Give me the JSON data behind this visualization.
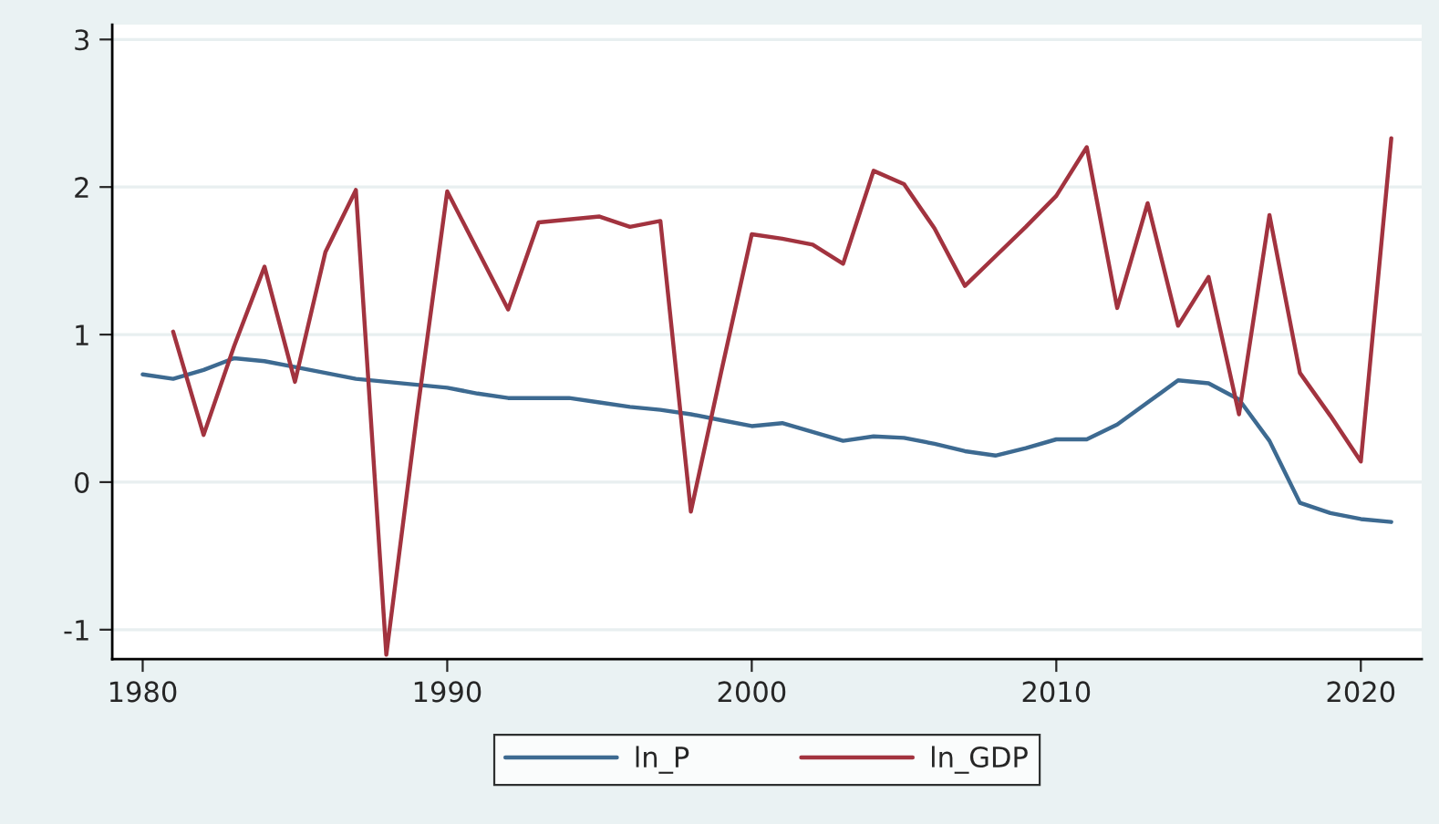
{
  "chart_data": {
    "type": "line",
    "x": [
      1980,
      1981,
      1982,
      1983,
      1984,
      1985,
      1986,
      1987,
      1988,
      1989,
      1990,
      1991,
      1992,
      1993,
      1994,
      1995,
      1996,
      1997,
      1998,
      1999,
      2000,
      2001,
      2002,
      2003,
      2004,
      2005,
      2006,
      2007,
      2008,
      2009,
      2010,
      2011,
      2012,
      2013,
      2014,
      2015,
      2016,
      2017,
      2018,
      2019,
      2020,
      2021
    ],
    "series": [
      {
        "name": "ln_P",
        "color": "#3d6a91",
        "values": [
          0.73,
          0.7,
          0.76,
          0.84,
          0.82,
          0.78,
          0.74,
          0.7,
          0.68,
          0.66,
          0.64,
          0.6,
          0.57,
          0.57,
          0.57,
          0.54,
          0.51,
          0.49,
          0.46,
          0.42,
          0.38,
          0.4,
          0.34,
          0.28,
          0.31,
          0.3,
          0.26,
          0.21,
          0.18,
          0.23,
          0.29,
          0.29,
          0.39,
          0.54,
          0.69,
          0.67,
          0.56,
          0.28,
          -0.14,
          -0.21,
          -0.25,
          -0.27
        ]
      },
      {
        "name": "ln_GDP",
        "color": "#a2333f",
        "values": [
          null,
          1.02,
          0.32,
          0.92,
          1.46,
          0.68,
          1.56,
          1.98,
          -1.17,
          0.45,
          1.97,
          1.57,
          1.17,
          1.76,
          1.78,
          1.8,
          1.73,
          1.77,
          -0.2,
          0.75,
          1.68,
          1.65,
          1.61,
          1.48,
          2.11,
          2.02,
          1.72,
          1.33,
          1.53,
          1.73,
          1.94,
          2.27,
          1.18,
          1.89,
          1.06,
          1.39,
          0.46,
          1.81,
          0.74,
          0.45,
          0.14,
          2.33
        ]
      }
    ],
    "xlim": [
      1979,
      2022
    ],
    "xticks": [
      1980,
      1990,
      2000,
      2010,
      2020
    ],
    "ylim": [
      -1.2,
      3.1
    ],
    "yticks": [
      -1,
      0,
      1,
      2,
      3
    ],
    "grid": "y",
    "legend": "bottom",
    "marker": "none",
    "line_style": "solid"
  }
}
